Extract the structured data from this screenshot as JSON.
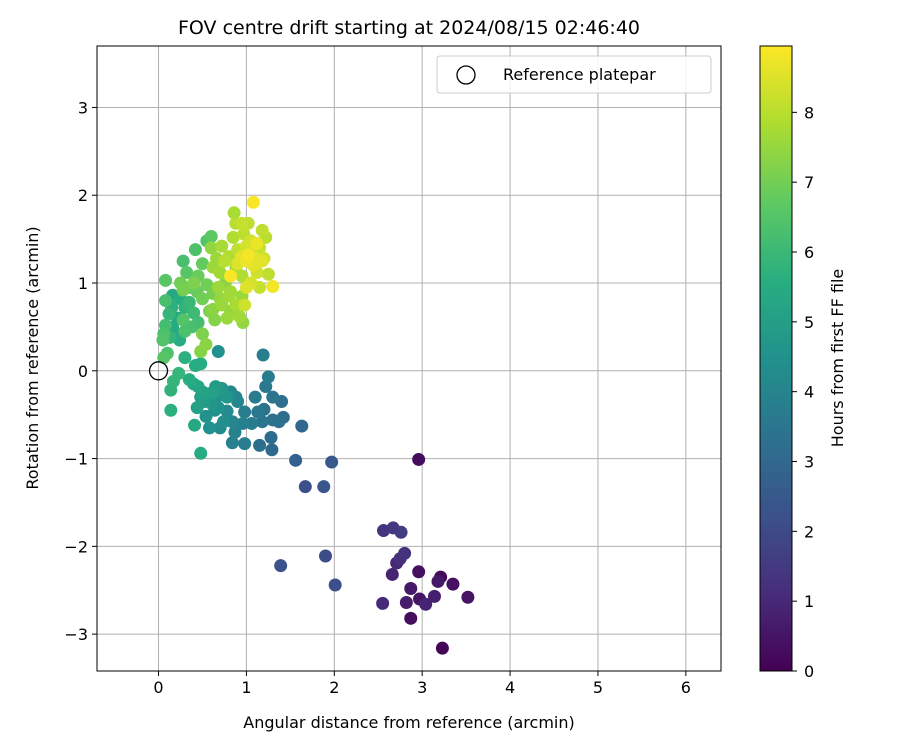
{
  "chart_data": {
    "type": "scatter",
    "title": "FOV centre drift starting at 2024/08/15 02:46:40",
    "xlabel": "Angular distance from reference (arcmin)",
    "ylabel": "Rotation from reference (arcmin)",
    "xlim": [
      -0.7,
      6.4
    ],
    "ylim": [
      -3.42,
      3.7
    ],
    "xticks": [
      0,
      1,
      2,
      3,
      4,
      5,
      6
    ],
    "yticks": [
      -3,
      -2,
      -1,
      0,
      1,
      2,
      3
    ],
    "grid": true,
    "legend": {
      "position": "top-right",
      "entries": [
        {
          "label": "Reference platepar",
          "marker": "open-circle"
        }
      ],
      "reference_point": {
        "x": 0,
        "y": 0
      }
    },
    "colorbar": {
      "label": "Hours from first FF file",
      "range": [
        0,
        8.95
      ],
      "ticks": [
        0,
        1,
        2,
        3,
        4,
        5,
        6,
        7,
        8
      ],
      "colormap": "viridis"
    },
    "points": [
      {
        "x": 2.96,
        "y": -1.01,
        "t": 0.3
      },
      {
        "x": 3.23,
        "y": -3.16,
        "t": 0.1
      },
      {
        "x": 2.87,
        "y": -2.82,
        "t": 0.3
      },
      {
        "x": 3.52,
        "y": -2.58,
        "t": 0.5
      },
      {
        "x": 3.35,
        "y": -2.43,
        "t": 0.4
      },
      {
        "x": 3.21,
        "y": -2.35,
        "t": 0.2
      },
      {
        "x": 3.18,
        "y": -2.4,
        "t": 0.6
      },
      {
        "x": 3.14,
        "y": -2.57,
        "t": 0.8
      },
      {
        "x": 3.04,
        "y": -2.66,
        "t": 0.9
      },
      {
        "x": 2.97,
        "y": -2.6,
        "t": 0.5
      },
      {
        "x": 2.82,
        "y": -2.64,
        "t": 0.7
      },
      {
        "x": 2.87,
        "y": -2.48,
        "t": 0.6
      },
      {
        "x": 2.96,
        "y": -2.29,
        "t": 0.4
      },
      {
        "x": 2.66,
        "y": -2.32,
        "t": 0.9
      },
      {
        "x": 2.55,
        "y": -2.65,
        "t": 1.1
      },
      {
        "x": 2.71,
        "y": -2.19,
        "t": 1.0
      },
      {
        "x": 2.75,
        "y": -2.14,
        "t": 1.2
      },
      {
        "x": 2.8,
        "y": -2.08,
        "t": 1.3
      },
      {
        "x": 2.56,
        "y": -1.82,
        "t": 1.4
      },
      {
        "x": 2.67,
        "y": -1.79,
        "t": 1.5
      },
      {
        "x": 2.76,
        "y": -1.84,
        "t": 1.6
      },
      {
        "x": 1.9,
        "y": -2.11,
        "t": 2.1
      },
      {
        "x": 2.01,
        "y": -2.44,
        "t": 2.2
      },
      {
        "x": 1.39,
        "y": -2.22,
        "t": 2.3
      },
      {
        "x": 1.67,
        "y": -1.32,
        "t": 2.2
      },
      {
        "x": 1.88,
        "y": -1.32,
        "t": 2.4
      },
      {
        "x": 1.97,
        "y": -1.04,
        "t": 2.5
      },
      {
        "x": 1.56,
        "y": -1.02,
        "t": 2.8
      },
      {
        "x": 1.63,
        "y": -0.63,
        "t": 3.0
      },
      {
        "x": 1.29,
        "y": -0.9,
        "t": 3.1
      },
      {
        "x": 1.28,
        "y": -0.76,
        "t": 3.2
      },
      {
        "x": 1.15,
        "y": -0.85,
        "t": 3.3
      },
      {
        "x": 1.42,
        "y": -0.53,
        "t": 3.2
      },
      {
        "x": 1.37,
        "y": -0.58,
        "t": 3.3
      },
      {
        "x": 1.3,
        "y": -0.56,
        "t": 3.4
      },
      {
        "x": 1.4,
        "y": -0.35,
        "t": 3.3
      },
      {
        "x": 1.3,
        "y": -0.3,
        "t": 3.5
      },
      {
        "x": 1.22,
        "y": -0.18,
        "t": 3.6
      },
      {
        "x": 1.25,
        "y": -0.07,
        "t": 3.7
      },
      {
        "x": 1.19,
        "y": 0.18,
        "t": 3.8
      },
      {
        "x": 1.2,
        "y": -0.44,
        "t": 3.4
      },
      {
        "x": 1.13,
        "y": -0.47,
        "t": 3.6
      },
      {
        "x": 1.1,
        "y": -0.3,
        "t": 3.7
      },
      {
        "x": 1.18,
        "y": -0.58,
        "t": 3.5
      },
      {
        "x": 1.06,
        "y": -0.6,
        "t": 3.7
      },
      {
        "x": 0.98,
        "y": -0.47,
        "t": 3.8
      },
      {
        "x": 0.96,
        "y": -0.6,
        "t": 3.9
      },
      {
        "x": 0.98,
        "y": -0.83,
        "t": 3.8
      },
      {
        "x": 0.84,
        "y": -0.82,
        "t": 3.9
      },
      {
        "x": 0.87,
        "y": -0.7,
        "t": 4.0
      },
      {
        "x": 0.84,
        "y": -0.58,
        "t": 4.1
      },
      {
        "x": 0.88,
        "y": -0.3,
        "t": 4.0
      },
      {
        "x": 0.82,
        "y": -0.24,
        "t": 4.2
      },
      {
        "x": 0.9,
        "y": -0.35,
        "t": 4.1
      },
      {
        "x": 0.78,
        "y": -0.46,
        "t": 4.3
      },
      {
        "x": 0.74,
        "y": -0.58,
        "t": 4.4
      },
      {
        "x": 0.7,
        "y": -0.65,
        "t": 4.3
      },
      {
        "x": 0.58,
        "y": -0.65,
        "t": 4.5
      },
      {
        "x": 0.54,
        "y": -0.52,
        "t": 4.6
      },
      {
        "x": 0.64,
        "y": -0.45,
        "t": 4.5
      },
      {
        "x": 0.6,
        "y": -0.37,
        "t": 4.7
      },
      {
        "x": 0.66,
        "y": -0.3,
        "t": 4.6
      },
      {
        "x": 0.58,
        "y": -0.26,
        "t": 4.8
      },
      {
        "x": 0.65,
        "y": -0.18,
        "t": 4.9
      },
      {
        "x": 0.72,
        "y": -0.2,
        "t": 4.8
      },
      {
        "x": 0.78,
        "y": -0.3,
        "t": 4.7
      },
      {
        "x": 0.68,
        "y": -0.42,
        "t": 4.6
      },
      {
        "x": 0.52,
        "y": -0.35,
        "t": 4.9
      },
      {
        "x": 0.48,
        "y": -0.3,
        "t": 5.0
      },
      {
        "x": 0.44,
        "y": -0.42,
        "t": 5.1
      },
      {
        "x": 0.5,
        "y": -0.24,
        "t": 5.2
      },
      {
        "x": 0.45,
        "y": -0.18,
        "t": 5.3
      },
      {
        "x": 0.68,
        "y": 0.22,
        "t": 4.5
      },
      {
        "x": 0.62,
        "y": -0.25,
        "t": 5.1
      },
      {
        "x": 0.4,
        "y": -0.15,
        "t": 5.4
      },
      {
        "x": 0.42,
        "y": 0.06,
        "t": 5.5
      },
      {
        "x": 0.35,
        "y": -0.1,
        "t": 5.6
      },
      {
        "x": 0.41,
        "y": -0.62,
        "t": 5.4
      },
      {
        "x": 0.48,
        "y": -0.94,
        "t": 5.5
      },
      {
        "x": 0.14,
        "y": -0.45,
        "t": 5.7
      },
      {
        "x": 0.14,
        "y": -0.22,
        "t": 5.8
      },
      {
        "x": 0.17,
        "y": -0.12,
        "t": 5.9
      },
      {
        "x": 0.23,
        "y": -0.03,
        "t": 5.9
      },
      {
        "x": 0.3,
        "y": 0.15,
        "t": 5.7
      },
      {
        "x": 0.48,
        "y": 0.08,
        "t": 5.6
      },
      {
        "x": 0.24,
        "y": 0.35,
        "t": 5.6
      },
      {
        "x": 0.2,
        "y": 0.42,
        "t": 5.5
      },
      {
        "x": 0.22,
        "y": 0.6,
        "t": 5.4
      },
      {
        "x": 0.16,
        "y": 0.5,
        "t": 5.5
      },
      {
        "x": 0.13,
        "y": 0.38,
        "t": 5.9
      },
      {
        "x": 0.15,
        "y": 0.72,
        "t": 5.7
      },
      {
        "x": 0.12,
        "y": 0.65,
        "t": 5.9
      },
      {
        "x": 0.16,
        "y": 0.86,
        "t": 5.4
      },
      {
        "x": 0.25,
        "y": 0.82,
        "t": 5.6
      },
      {
        "x": 0.3,
        "y": 0.72,
        "t": 5.8
      },
      {
        "x": 0.35,
        "y": 0.78,
        "t": 6.0
      },
      {
        "x": 0.4,
        "y": 0.66,
        "t": 6.1
      },
      {
        "x": 0.45,
        "y": 0.55,
        "t": 6.2
      },
      {
        "x": 0.38,
        "y": 0.5,
        "t": 6.3
      },
      {
        "x": 0.3,
        "y": 0.45,
        "t": 6.4
      },
      {
        "x": 0.28,
        "y": 0.58,
        "t": 6.5
      },
      {
        "x": 0.08,
        "y": 0.8,
        "t": 6.3
      },
      {
        "x": 0.08,
        "y": 0.52,
        "t": 6.2
      },
      {
        "x": 0.06,
        "y": 0.42,
        "t": 6.4
      },
      {
        "x": 0.05,
        "y": 0.35,
        "t": 6.5
      },
      {
        "x": 0.1,
        "y": 0.2,
        "t": 6.4
      },
      {
        "x": 0.06,
        "y": 0.15,
        "t": 6.6
      },
      {
        "x": 0.08,
        "y": 1.03,
        "t": 6.6
      },
      {
        "x": 0.28,
        "y": 1.25,
        "t": 6.3
      },
      {
        "x": 0.32,
        "y": 1.12,
        "t": 6.6
      },
      {
        "x": 0.42,
        "y": 1.38,
        "t": 6.4
      },
      {
        "x": 0.55,
        "y": 1.48,
        "t": 6.5
      },
      {
        "x": 0.6,
        "y": 1.53,
        "t": 6.7
      },
      {
        "x": 0.5,
        "y": 1.22,
        "t": 6.8
      },
      {
        "x": 0.45,
        "y": 1.08,
        "t": 6.9
      },
      {
        "x": 0.55,
        "y": 0.98,
        "t": 7.0
      },
      {
        "x": 0.62,
        "y": 0.88,
        "t": 7.1
      },
      {
        "x": 0.5,
        "y": 0.82,
        "t": 7.0
      },
      {
        "x": 0.44,
        "y": 0.9,
        "t": 6.9
      },
      {
        "x": 0.36,
        "y": 0.95,
        "t": 6.8
      },
      {
        "x": 0.4,
        "y": 1.0,
        "t": 7.2
      },
      {
        "x": 0.28,
        "y": 0.92,
        "t": 7.1
      },
      {
        "x": 0.25,
        "y": 1.0,
        "t": 7.0
      },
      {
        "x": 0.58,
        "y": 0.68,
        "t": 7.2
      },
      {
        "x": 0.64,
        "y": 0.58,
        "t": 7.3
      },
      {
        "x": 0.5,
        "y": 0.42,
        "t": 7.2
      },
      {
        "x": 0.54,
        "y": 0.3,
        "t": 7.4
      },
      {
        "x": 0.48,
        "y": 0.22,
        "t": 7.3
      },
      {
        "x": 0.62,
        "y": 0.7,
        "t": 7.4
      },
      {
        "x": 0.7,
        "y": 0.82,
        "t": 7.5
      },
      {
        "x": 0.68,
        "y": 0.95,
        "t": 7.6
      },
      {
        "x": 0.76,
        "y": 1.0,
        "t": 7.4
      },
      {
        "x": 0.8,
        "y": 0.85,
        "t": 7.7
      },
      {
        "x": 0.72,
        "y": 0.75,
        "t": 7.6
      },
      {
        "x": 0.82,
        "y": 0.68,
        "t": 7.5
      },
      {
        "x": 0.88,
        "y": 0.75,
        "t": 7.8
      },
      {
        "x": 0.95,
        "y": 0.85,
        "t": 7.6
      },
      {
        "x": 0.92,
        "y": 0.62,
        "t": 7.7
      },
      {
        "x": 0.96,
        "y": 0.55,
        "t": 7.5
      },
      {
        "x": 0.95,
        "y": 1.08,
        "t": 7.9
      },
      {
        "x": 0.88,
        "y": 1.18,
        "t": 7.8
      },
      {
        "x": 0.8,
        "y": 1.3,
        "t": 7.9
      },
      {
        "x": 0.72,
        "y": 1.42,
        "t": 7.8
      },
      {
        "x": 0.66,
        "y": 1.28,
        "t": 7.6
      },
      {
        "x": 0.7,
        "y": 1.12,
        "t": 7.7
      },
      {
        "x": 0.62,
        "y": 1.18,
        "t": 7.6
      },
      {
        "x": 0.85,
        "y": 1.52,
        "t": 7.9
      },
      {
        "x": 0.9,
        "y": 1.38,
        "t": 8.1
      },
      {
        "x": 0.86,
        "y": 1.8,
        "t": 7.8
      },
      {
        "x": 0.88,
        "y": 1.68,
        "t": 8.0
      },
      {
        "x": 0.97,
        "y": 1.56,
        "t": 8.1
      },
      {
        "x": 0.95,
        "y": 1.68,
        "t": 8.2
      },
      {
        "x": 1.02,
        "y": 1.68,
        "t": 8.1
      },
      {
        "x": 1.05,
        "y": 1.48,
        "t": 8.3
      },
      {
        "x": 1.0,
        "y": 1.42,
        "t": 8.4
      },
      {
        "x": 1.05,
        "y": 1.35,
        "t": 8.4
      },
      {
        "x": 1.1,
        "y": 1.28,
        "t": 8.5
      },
      {
        "x": 1.15,
        "y": 1.4,
        "t": 8.2
      },
      {
        "x": 1.2,
        "y": 1.28,
        "t": 8.3
      },
      {
        "x": 1.25,
        "y": 1.1,
        "t": 8.1
      },
      {
        "x": 1.12,
        "y": 1.12,
        "t": 8.3
      },
      {
        "x": 1.08,
        "y": 1.2,
        "t": 8.6
      },
      {
        "x": 1.0,
        "y": 1.25,
        "t": 8.7
      },
      {
        "x": 0.95,
        "y": 1.3,
        "t": 8.6
      },
      {
        "x": 0.9,
        "y": 1.22,
        "t": 8.5
      },
      {
        "x": 1.05,
        "y": 1.0,
        "t": 8.4
      },
      {
        "x": 1.15,
        "y": 0.95,
        "t": 8.2
      },
      {
        "x": 1.22,
        "y": 1.52,
        "t": 8.0
      },
      {
        "x": 1.18,
        "y": 1.6,
        "t": 8.1
      },
      {
        "x": 1.08,
        "y": 1.92,
        "t": 8.9
      },
      {
        "x": 1.3,
        "y": 0.96,
        "t": 8.8
      },
      {
        "x": 0.82,
        "y": 1.08,
        "t": 8.9
      },
      {
        "x": 0.98,
        "y": 0.75,
        "t": 8.3
      },
      {
        "x": 1.0,
        "y": 0.95,
        "t": 8.5
      },
      {
        "x": 0.78,
        "y": 0.6,
        "t": 7.6
      },
      {
        "x": 0.82,
        "y": 0.9,
        "t": 7.7
      },
      {
        "x": 1.12,
        "y": 1.45,
        "t": 8.7
      },
      {
        "x": 1.02,
        "y": 1.32,
        "t": 8.8
      },
      {
        "x": 1.18,
        "y": 1.25,
        "t": 8.6
      },
      {
        "x": 0.75,
        "y": 1.25,
        "t": 8.0
      },
      {
        "x": 0.6,
        "y": 1.4,
        "t": 7.5
      }
    ]
  }
}
